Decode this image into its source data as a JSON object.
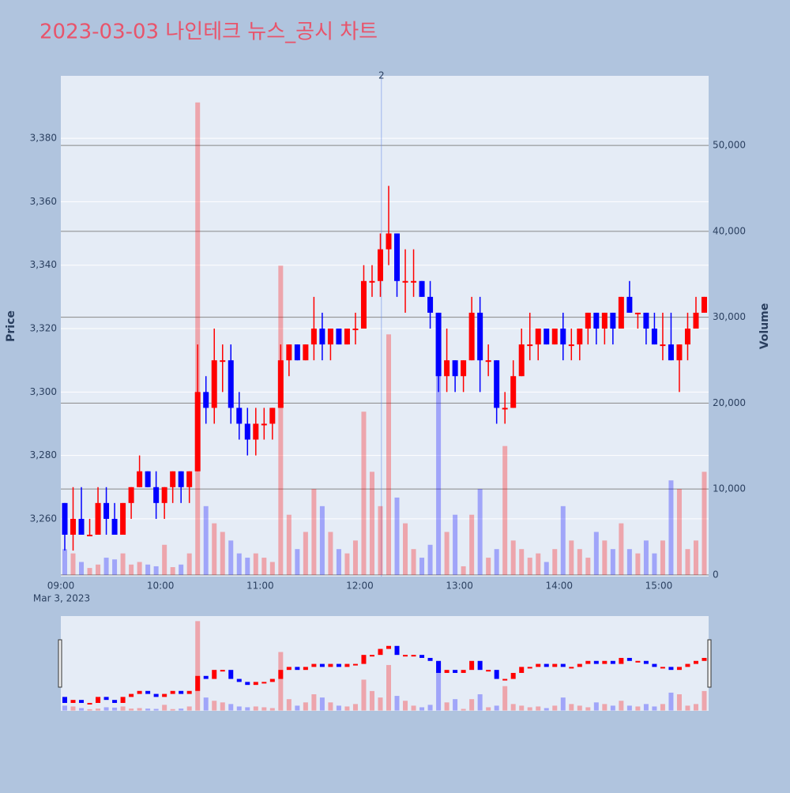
{
  "chart_data": {
    "type": "candlestick",
    "title": "2023-03-03 나인테크 뉴스_공시 차트",
    "y_label": "Price",
    "y2_label": "Volume",
    "x_date_label": "Mar 3, 2023",
    "increasing_color": "#ff0000",
    "decreasing_color": "#0000ff",
    "xlim": [
      "09:00",
      "15:30"
    ],
    "xticks": [
      "09:00",
      "10:00",
      "11:00",
      "12:00",
      "13:00",
      "14:00",
      "15:00"
    ],
    "ylim": [
      3241.8,
      3399.7
    ],
    "yticks": [
      {
        "value": 3260,
        "label": "3,260"
      },
      {
        "value": 3280,
        "label": "3,280"
      },
      {
        "value": 3300,
        "label": "3,300"
      },
      {
        "value": 3320,
        "label": "3,320"
      },
      {
        "value": 3340,
        "label": "3,340"
      },
      {
        "value": 3360,
        "label": "3,360"
      },
      {
        "value": 3380,
        "label": "3,380"
      }
    ],
    "y2lim": [
      -200,
      58100
    ],
    "y2ticks": [
      0,
      {
        "value": 10000,
        "label": "10,000"
      },
      {
        "value": 20000,
        "label": "20,000"
      },
      {
        "value": 30000,
        "label": "30,000"
      },
      {
        "value": 40000,
        "label": "40,000"
      },
      {
        "value": 50000,
        "label": "50,000"
      }
    ],
    "annotation": {
      "x": "12:13",
      "text": "2"
    },
    "x": [
      "09:00",
      "09:05",
      "09:10",
      "09:15",
      "09:20",
      "09:25",
      "09:30",
      "09:35",
      "09:40",
      "09:45",
      "09:50",
      "09:55",
      "10:00",
      "10:05",
      "10:10",
      "10:15",
      "10:20",
      "10:25",
      "10:30",
      "10:35",
      "10:40",
      "10:45",
      "10:50",
      "10:55",
      "11:00",
      "11:05",
      "11:10",
      "11:15",
      "11:20",
      "11:25",
      "11:30",
      "11:35",
      "11:40",
      "11:45",
      "11:50",
      "11:55",
      "12:00",
      "12:05",
      "12:10",
      "12:15",
      "12:20",
      "12:25",
      "12:30",
      "12:35",
      "12:40",
      "12:45",
      "12:50",
      "12:55",
      "13:00",
      "13:05",
      "13:10",
      "13:15",
      "13:20",
      "13:25",
      "13:30",
      "13:35",
      "13:40",
      "13:45",
      "13:50",
      "13:55",
      "14:00",
      "14:05",
      "14:10",
      "14:15",
      "14:20",
      "14:25",
      "14:30",
      "14:35",
      "14:40",
      "14:45",
      "14:50",
      "14:55",
      "15:00",
      "15:05",
      "15:10",
      "15:15",
      "15:20",
      "15:25"
    ],
    "open": [
      3265,
      3255,
      3260,
      3255,
      3255,
      3265,
      3260,
      3255,
      3265,
      3270,
      3275,
      3270,
      3265,
      3270,
      3275,
      3270,
      3275,
      3300,
      3295,
      3310,
      3310,
      3295,
      3290,
      3285,
      3290,
      3290,
      3295,
      3310,
      3315,
      3310,
      3315,
      3320,
      3315,
      3320,
      3315,
      3320,
      3320,
      3335,
      3335,
      3345,
      3350,
      3335,
      3335,
      3335,
      3330,
      3325,
      3305,
      3310,
      3305,
      3310,
      3325,
      3310,
      3310,
      3295,
      3295,
      3305,
      3315,
      3315,
      3320,
      3315,
      3320,
      3315,
      3315,
      3320,
      3325,
      3320,
      3325,
      3320,
      3330,
      3325,
      3325,
      3320,
      3315,
      3315,
      3310,
      3315,
      3320,
      3325
    ],
    "high": [
      3265,
      3270,
      3270,
      3260,
      3270,
      3270,
      3265,
      3265,
      3270,
      3280,
      3275,
      3275,
      3270,
      3275,
      3275,
      3275,
      3315,
      3305,
      3320,
      3315,
      3315,
      3300,
      3295,
      3295,
      3295,
      3295,
      3315,
      3315,
      3315,
      3315,
      3330,
      3325,
      3320,
      3320,
      3320,
      3325,
      3340,
      3340,
      3350,
      3365,
      3350,
      3345,
      3345,
      3335,
      3335,
      3325,
      3320,
      3310,
      3310,
      3330,
      3330,
      3315,
      3310,
      3300,
      3310,
      3320,
      3325,
      3320,
      3320,
      3320,
      3325,
      3320,
      3320,
      3325,
      3325,
      3325,
      3325,
      3330,
      3335,
      3325,
      3325,
      3325,
      3325,
      3325,
      3315,
      3325,
      3330,
      3330
    ],
    "low": [
      3250,
      3250,
      3255,
      3255,
      3255,
      3255,
      3255,
      3255,
      3260,
      3270,
      3270,
      3260,
      3260,
      3265,
      3265,
      3265,
      3275,
      3290,
      3290,
      3300,
      3290,
      3285,
      3280,
      3280,
      3285,
      3285,
      3295,
      3305,
      3310,
      3310,
      3310,
      3310,
      3310,
      3315,
      3315,
      3315,
      3320,
      3330,
      3330,
      3340,
      3330,
      3325,
      3330,
      3330,
      3320,
      3300,
      3300,
      3300,
      3300,
      3310,
      3300,
      3305,
      3290,
      3290,
      3295,
      3305,
      3310,
      3310,
      3315,
      3315,
      3310,
      3310,
      3310,
      3315,
      3315,
      3315,
      3315,
      3320,
      3325,
      3320,
      3315,
      3315,
      3310,
      3310,
      3300,
      3310,
      3320,
      3325
    ],
    "close": [
      3255,
      3260,
      3255,
      3255,
      3265,
      3260,
      3255,
      3265,
      3270,
      3275,
      3270,
      3265,
      3270,
      3275,
      3270,
      3275,
      3300,
      3295,
      3310,
      3310,
      3295,
      3290,
      3285,
      3290,
      3290,
      3295,
      3310,
      3315,
      3310,
      3315,
      3320,
      3315,
      3320,
      3315,
      3320,
      3320,
      3335,
      3335,
      3345,
      3350,
      3335,
      3335,
      3335,
      3330,
      3325,
      3305,
      3310,
      3305,
      3310,
      3325,
      3310,
      3310,
      3295,
      3295,
      3305,
      3315,
      3315,
      3320,
      3315,
      3320,
      3315,
      3315,
      3320,
      3325,
      3320,
      3325,
      3320,
      3330,
      3325,
      3325,
      3320,
      3315,
      3315,
      3310,
      3315,
      3320,
      3325,
      3330
    ],
    "volume": [
      3000,
      2500,
      1500,
      800,
      1200,
      2000,
      1800,
      2500,
      1200,
      1500,
      1200,
      1000,
      3500,
      900,
      1200,
      2500,
      55000,
      8000,
      6000,
      5000,
      4000,
      2500,
      2000,
      2500,
      2000,
      1500,
      36000,
      7000,
      3000,
      5000,
      10000,
      8000,
      5000,
      3000,
      2500,
      4000,
      19000,
      12000,
      8000,
      28000,
      9000,
      6000,
      3000,
      2000,
      3500,
      30000,
      5000,
      7000,
      1000,
      7000,
      10000,
      2000,
      3000,
      15000,
      4000,
      3000,
      2000,
      2500,
      1500,
      3000,
      8000,
      4000,
      3000,
      2000,
      5000,
      4000,
      3000,
      6000,
      3000,
      2500,
      4000,
      2500,
      4000,
      11000,
      10000,
      3000,
      4000,
      12000
    ]
  }
}
